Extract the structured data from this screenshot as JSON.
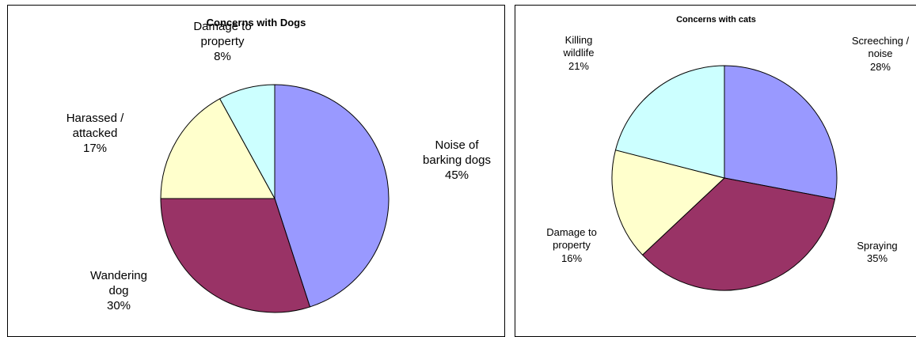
{
  "chart_data": [
    {
      "type": "pie",
      "title": "Concerns with Dogs",
      "slices": [
        {
          "label": [
            "Noise of",
            "barking dogs"
          ],
          "percent_label": "45%",
          "value": 45,
          "color": "#9999ff"
        },
        {
          "label": [
            "Wandering",
            "dog"
          ],
          "percent_label": "30%",
          "value": 30,
          "color": "#993366"
        },
        {
          "label": [
            "Harassed /",
            "attacked"
          ],
          "percent_label": "17%",
          "value": 17,
          "color": "#ffffcc"
        },
        {
          "label": [
            "Damage to",
            "property"
          ],
          "percent_label": "8%",
          "value": 8,
          "color": "#ccffff"
        }
      ]
    },
    {
      "type": "pie",
      "title": "Concerns with cats",
      "slices": [
        {
          "label": [
            "Screeching /",
            "noise"
          ],
          "percent_label": "28%",
          "value": 28,
          "color": "#9999ff"
        },
        {
          "label": [
            "Spraying"
          ],
          "percent_label": "35%",
          "value": 35,
          "color": "#993366"
        },
        {
          "label": [
            "Damage to",
            "property"
          ],
          "percent_label": "16%",
          "value": 16,
          "color": "#ffffcc"
        },
        {
          "label": [
            "Killing",
            "wildlife"
          ],
          "percent_label": "21%",
          "value": 21,
          "color": "#ccffff"
        }
      ]
    }
  ]
}
